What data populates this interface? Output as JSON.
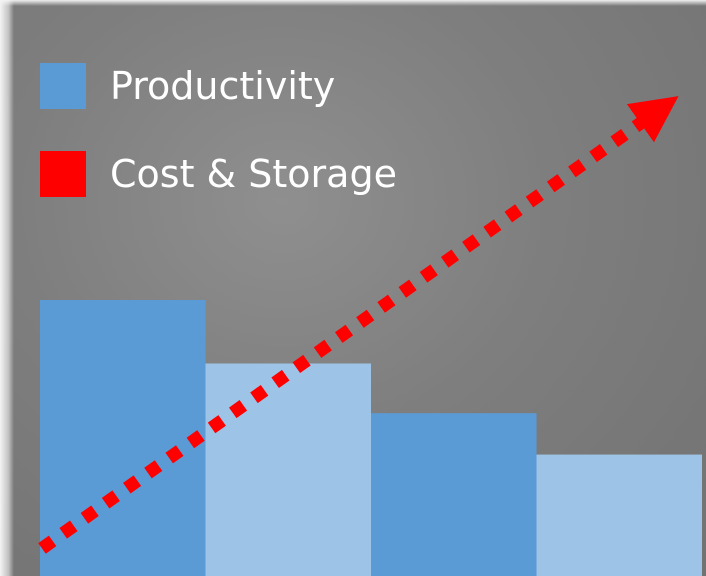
{
  "legend": [
    {
      "label": "Productivity",
      "color": "#5b9bd5"
    },
    {
      "label": "Cost & Storage",
      "color": "#ff0000"
    }
  ],
  "chart_data": {
    "type": "bar",
    "title": "",
    "xlabel": "",
    "ylabel": "",
    "ylim": [
      0,
      100
    ],
    "categories": [
      "",
      "",
      "",
      ""
    ],
    "series": [
      {
        "name": "Productivity",
        "values": [
          100,
          77,
          59,
          44
        ],
        "colors": [
          "#5b9bd5",
          "#9dc3e6",
          "#5b9bd5",
          "#9dc3e6"
        ]
      }
    ],
    "trend": {
      "name": "Cost & Storage",
      "style": "dotted-arrow",
      "color": "#ff0000",
      "start": 10,
      "end": 166
    },
    "grid": false,
    "legend_position": "top-left"
  }
}
